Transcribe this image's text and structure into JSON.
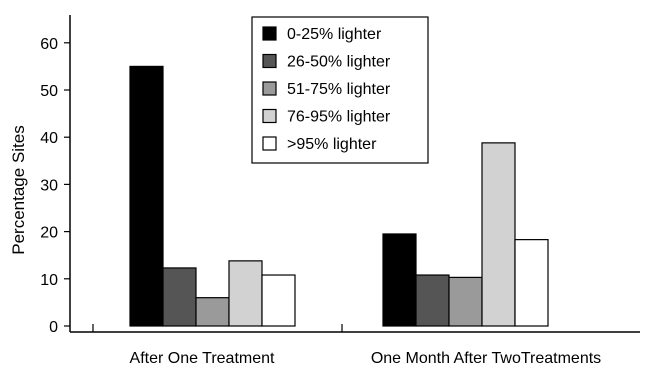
{
  "chart_data": {
    "type": "bar",
    "title": "",
    "xlabel": "",
    "ylabel": "Percentage Sites",
    "ylim": [
      0,
      65
    ],
    "yticks": [
      0,
      10,
      20,
      30,
      40,
      50,
      60
    ],
    "grid": false,
    "legend_position": "top-center",
    "categories": [
      "After One Treatment",
      "One Month After TwoTreatments"
    ],
    "series": [
      {
        "name": "0-25% lighter",
        "color": "#000000",
        "values": [
          55,
          19.5
        ]
      },
      {
        "name": "26-50% lighter",
        "color": "#555555",
        "values": [
          12.3,
          10.8
        ]
      },
      {
        "name": "51-75% lighter",
        "color": "#9a9a9a",
        "values": [
          6,
          10.3
        ]
      },
      {
        "name": "76-95% lighter",
        "color": "#d2d2d2",
        "values": [
          13.8,
          38.8
        ]
      },
      {
        "name": ">95% lighter",
        "color": "#ffffff",
        "values": [
          10.8,
          18.3
        ]
      }
    ]
  }
}
